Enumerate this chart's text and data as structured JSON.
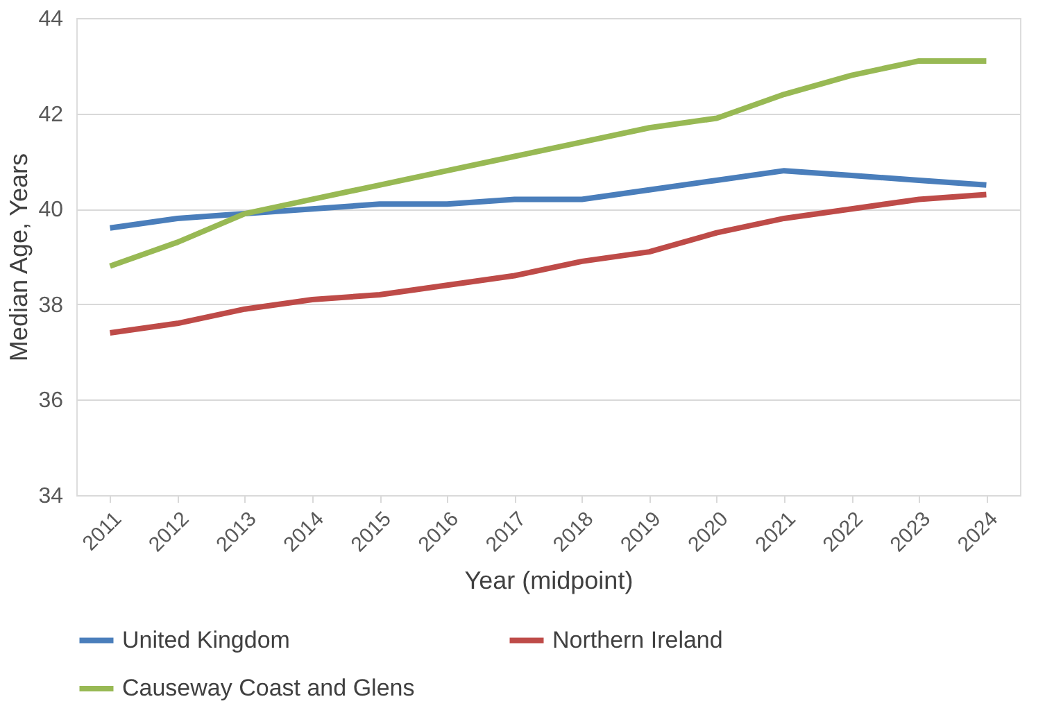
{
  "chart_data": {
    "type": "line",
    "xlabel": "Year (midpoint)",
    "ylabel": "Median Age, Years",
    "categories": [
      "2011",
      "2012",
      "2013",
      "2014",
      "2015",
      "2016",
      "2017",
      "2018",
      "2019",
      "2020",
      "2021",
      "2022",
      "2023",
      "2024"
    ],
    "series": [
      {
        "name": "United Kingdom",
        "color": "#4a7ebb",
        "values": [
          39.6,
          39.8,
          39.9,
          40.0,
          40.1,
          40.1,
          40.2,
          40.2,
          40.4,
          40.6,
          40.8,
          40.7,
          40.6,
          40.5
        ]
      },
      {
        "name": "Northern Ireland",
        "color": "#be4b48",
        "values": [
          37.4,
          37.6,
          37.9,
          38.1,
          38.2,
          38.4,
          38.6,
          38.9,
          39.1,
          39.5,
          39.8,
          40.0,
          40.2,
          40.3
        ]
      },
      {
        "name": "Causeway Coast and Glens",
        "color": "#98b954",
        "values": [
          38.8,
          39.3,
          39.9,
          40.2,
          40.5,
          40.8,
          41.1,
          41.4,
          41.7,
          41.9,
          42.4,
          42.8,
          43.1,
          43.1
        ]
      }
    ],
    "ylim": [
      34,
      44
    ],
    "yticks": [
      34,
      36,
      38,
      40,
      42,
      44
    ],
    "grid": "y",
    "legend": "bottom",
    "marker": "none",
    "line_style": "solid"
  }
}
